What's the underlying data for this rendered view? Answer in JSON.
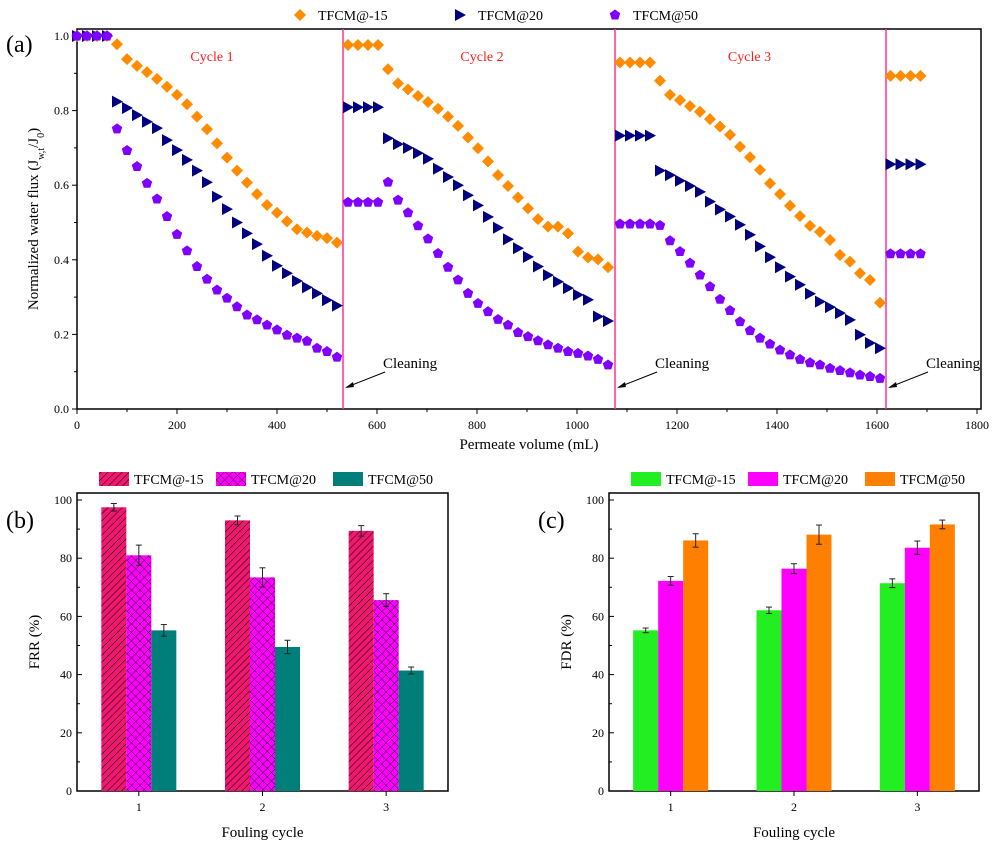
{
  "chart_data": [
    {
      "panel": "(a)",
      "type": "scatter",
      "xlabel": "Permeate volume (mL)",
      "ylabel": "Normalized water flux (J_w,t/J_0)",
      "xlim": [
        0,
        1800
      ],
      "ylim": [
        0,
        1.0
      ],
      "xticks": [
        0,
        200,
        400,
        600,
        800,
        1000,
        1200,
        1400,
        1600,
        1800
      ],
      "yticks": [
        0.0,
        0.2,
        0.4,
        0.6,
        0.8,
        1.0
      ],
      "legend": "top",
      "cycle_labels": [
        {
          "text": "Cycle 1",
          "x": 270
        },
        {
          "text": "Cycle 2",
          "x": 810
        },
        {
          "text": "Cycle 3",
          "x": 1345
        }
      ],
      "cleaning_lines": [
        532,
        1076,
        1618
      ],
      "cleaning_label": "Cleaning",
      "series": [
        {
          "name": "TFCM@-15",
          "color": "#ff8c00",
          "marker": "diamond",
          "segments": [
            {
              "x0": 0,
              "dx": 20,
              "y": [
                1.0,
                1.0,
                1.0,
                1.0
              ]
            },
            {
              "x0": 80,
              "dx": 20,
              "y": [
                0.978,
                0.938,
                0.92,
                0.903,
                0.885,
                0.864,
                0.842,
                0.817,
                0.784,
                0.75,
                0.712,
                0.674,
                0.639,
                0.607,
                0.576,
                0.547,
                0.526,
                0.503,
                0.482,
                0.473,
                0.464,
                0.458,
                0.446
              ]
            },
            {
              "x0": 542,
              "dx": 20,
              "y": [
                0.976,
                0.976,
                0.976,
                0.976
              ]
            },
            {
              "x0": 622,
              "dx": 20,
              "y": [
                0.911,
                0.873,
                0.857,
                0.839,
                0.823,
                0.805,
                0.784,
                0.759,
                0.728,
                0.699,
                0.664,
                0.627,
                0.598,
                0.567,
                0.538,
                0.509,
                0.489,
                0.489,
                0.471,
                0.422,
                0.406,
                0.401,
                0.38
              ]
            },
            {
              "x0": 1086,
              "dx": 20,
              "y": [
                0.929,
                0.929,
                0.929,
                0.929
              ]
            },
            {
              "x0": 1166,
              "dx": 20,
              "y": [
                0.88,
                0.842,
                0.828,
                0.812,
                0.797,
                0.777,
                0.757,
                0.735,
                0.703,
                0.675,
                0.641,
                0.605,
                0.576,
                0.545,
                0.517,
                0.491,
                0.475,
                0.453,
                0.413,
                0.395,
                0.364,
                0.346,
                0.285
              ]
            },
            {
              "x0": 1627,
              "dx": 20,
              "y": [
                0.893,
                0.893,
                0.893,
                0.893
              ]
            }
          ]
        },
        {
          "name": "TFCM@20",
          "color": "#000080",
          "marker": "triangle-right",
          "segments": [
            {
              "x0": 0,
              "dx": 20,
              "y": [
                1.0,
                1.0,
                1.0,
                1.0
              ]
            },
            {
              "x0": 80,
              "dx": 20,
              "y": [
                0.824,
                0.807,
                0.788,
                0.77,
                0.753,
                0.721,
                0.694,
                0.668,
                0.639,
                0.608,
                0.569,
                0.536,
                0.5,
                0.471,
                0.442,
                0.411,
                0.384,
                0.364,
                0.343,
                0.326,
                0.31,
                0.292,
                0.277
              ]
            },
            {
              "x0": 542,
              "dx": 20,
              "y": [
                0.809,
                0.809,
                0.809,
                0.809
              ]
            },
            {
              "x0": 622,
              "dx": 20,
              "y": [
                0.726,
                0.71,
                0.7,
                0.686,
                0.671,
                0.644,
                0.622,
                0.6,
                0.573,
                0.546,
                0.515,
                0.486,
                0.455,
                0.431,
                0.408,
                0.382,
                0.359,
                0.341,
                0.324,
                0.306,
                0.293,
                0.248,
                0.236
              ]
            },
            {
              "x0": 1086,
              "dx": 20,
              "y": [
                0.733,
                0.733,
                0.733,
                0.733
              ]
            },
            {
              "x0": 1166,
              "dx": 20,
              "y": [
                0.639,
                0.627,
                0.612,
                0.598,
                0.582,
                0.556,
                0.535,
                0.516,
                0.494,
                0.467,
                0.436,
                0.407,
                0.38,
                0.355,
                0.333,
                0.309,
                0.288,
                0.273,
                0.257,
                0.239,
                0.199,
                0.177,
                0.163
              ]
            },
            {
              "x0": 1627,
              "dx": 20,
              "y": [
                0.656,
                0.656,
                0.656,
                0.656
              ]
            }
          ]
        },
        {
          "name": "TFCM@50",
          "color": "#8000ff",
          "marker": "pentagon",
          "segments": [
            {
              "x0": 0,
              "dx": 20,
              "y": [
                1.0,
                1.0,
                1.0,
                1.0
              ]
            },
            {
              "x0": 80,
              "dx": 20,
              "y": [
                0.751,
                0.693,
                0.65,
                0.605,
                0.563,
                0.516,
                0.468,
                0.424,
                0.382,
                0.348,
                0.319,
                0.297,
                0.274,
                0.252,
                0.239,
                0.225,
                0.212,
                0.198,
                0.19,
                0.182,
                0.163,
                0.154,
                0.139
              ]
            },
            {
              "x0": 542,
              "dx": 20,
              "y": [
                0.554,
                0.554,
                0.554,
                0.554
              ]
            },
            {
              "x0": 622,
              "dx": 20,
              "y": [
                0.608,
                0.56,
                0.526,
                0.491,
                0.456,
                0.417,
                0.38,
                0.346,
                0.31,
                0.283,
                0.261,
                0.24,
                0.225,
                0.205,
                0.194,
                0.183,
                0.172,
                0.163,
                0.154,
                0.149,
                0.142,
                0.133,
                0.118
              ]
            },
            {
              "x0": 1086,
              "dx": 20,
              "y": [
                0.496,
                0.496,
                0.496,
                0.496
              ]
            },
            {
              "x0": 1166,
              "dx": 20,
              "y": [
                0.492,
                0.451,
                0.422,
                0.391,
                0.359,
                0.328,
                0.294,
                0.264,
                0.234,
                0.21,
                0.19,
                0.174,
                0.158,
                0.145,
                0.133,
                0.124,
                0.118,
                0.109,
                0.103,
                0.097,
                0.091,
                0.087,
                0.082
              ]
            },
            {
              "x0": 1627,
              "dx": 20,
              "y": [
                0.416,
                0.416,
                0.416,
                0.416
              ]
            }
          ]
        }
      ]
    },
    {
      "panel": "(b)",
      "type": "bar",
      "xlabel": "Fouling cycle",
      "ylabel": "FRR (%)",
      "categories": [
        "1",
        "2",
        "3"
      ],
      "ylim": [
        0,
        100
      ],
      "yticks": [
        0,
        20,
        40,
        60,
        80,
        100
      ],
      "legend": "top",
      "series": [
        {
          "name": "TFCM@-15",
          "color": "#f0186e",
          "pattern": "diagonal",
          "values": [
            97.5,
            93.0,
            89.4
          ],
          "errors": [
            1.3,
            1.5,
            1.8
          ]
        },
        {
          "name": "TFCM@20",
          "color": "#ff00ff",
          "pattern": "crosshatch",
          "values": [
            81.0,
            73.4,
            65.6
          ],
          "errors": [
            3.5,
            3.3,
            2.2
          ]
        },
        {
          "name": "TFCM@50",
          "color": "#007f7a",
          "pattern": "solid",
          "values": [
            55.2,
            49.5,
            41.4
          ],
          "errors": [
            2.0,
            2.3,
            1.2
          ]
        }
      ]
    },
    {
      "panel": "(c)",
      "type": "bar",
      "xlabel": "Fouling cycle",
      "ylabel": "FDR (%)",
      "categories": [
        "1",
        "2",
        "3"
      ],
      "ylim": [
        0,
        100
      ],
      "yticks": [
        0,
        20,
        40,
        60,
        80,
        100
      ],
      "legend": "top",
      "series": [
        {
          "name": "TFCM@-15",
          "color": "#22ee22",
          "pattern": "solid",
          "values": [
            55.2,
            62.1,
            71.4
          ],
          "errors": [
            0.8,
            1.1,
            1.5
          ]
        },
        {
          "name": "TFCM@20",
          "color": "#ff00ff",
          "pattern": "solid",
          "values": [
            72.2,
            76.4,
            83.6
          ],
          "errors": [
            1.5,
            1.7,
            2.3
          ]
        },
        {
          "name": "TFCM@50",
          "color": "#ff8000",
          "pattern": "solid",
          "values": [
            86.1,
            88.1,
            91.6
          ],
          "errors": [
            2.3,
            3.3,
            1.5
          ]
        }
      ]
    }
  ]
}
